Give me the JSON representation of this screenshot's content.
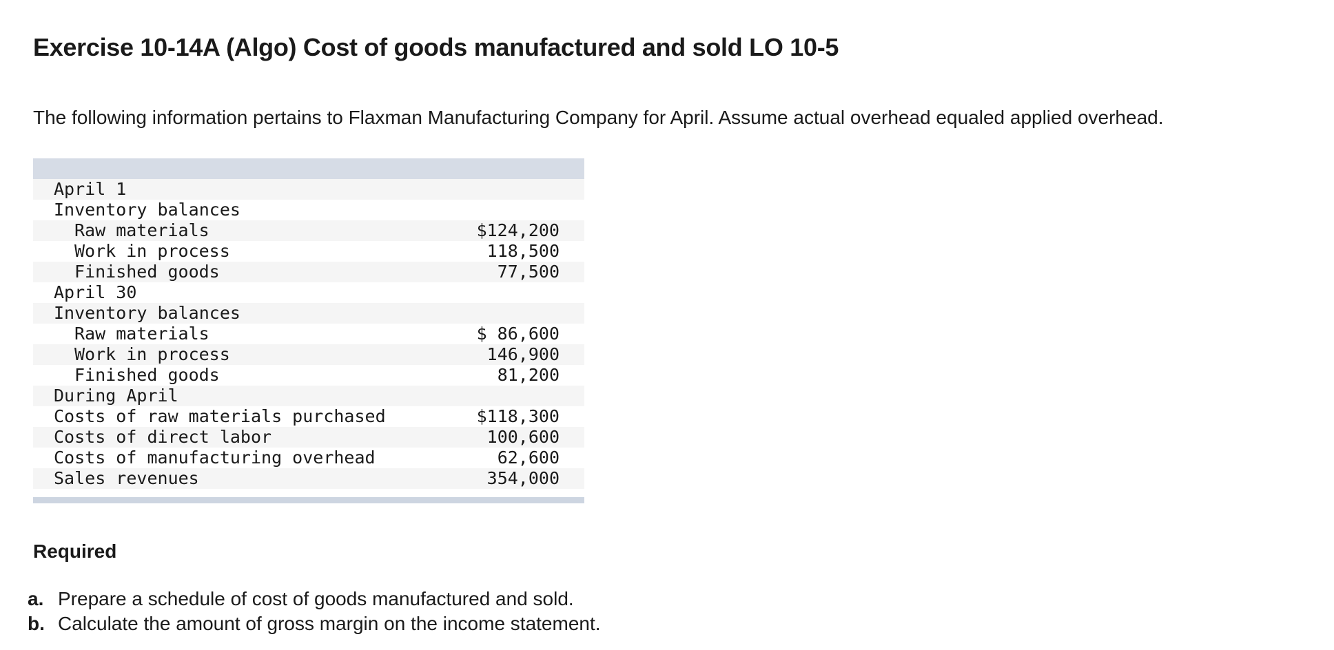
{
  "title": "Exercise 10-14A (Algo) Cost of goods manufactured and sold LO 10-5",
  "intro": "The following information pertains to Flaxman Manufacturing Company for April. Assume actual overhead equaled applied overhead.",
  "table": {
    "rows": [
      {
        "label": "April 1",
        "value": "",
        "indent": false
      },
      {
        "label": "Inventory balances",
        "value": "",
        "indent": false
      },
      {
        "label": "Raw materials",
        "value": "$124,200",
        "indent": true
      },
      {
        "label": "Work in process",
        "value": "118,500",
        "indent": true
      },
      {
        "label": "Finished goods",
        "value": "77,500",
        "indent": true
      },
      {
        "label": "April 30",
        "value": "",
        "indent": false
      },
      {
        "label": "Inventory balances",
        "value": "",
        "indent": false
      },
      {
        "label": "Raw materials",
        "value": "$ 86,600",
        "indent": true
      },
      {
        "label": "Work in process",
        "value": "146,900",
        "indent": true
      },
      {
        "label": "Finished goods",
        "value": "81,200",
        "indent": true
      },
      {
        "label": "During April",
        "value": "",
        "indent": false
      },
      {
        "label": "Costs of raw materials purchased",
        "value": "$118,300",
        "indent": false
      },
      {
        "label": "Costs of direct labor",
        "value": "100,600",
        "indent": false
      },
      {
        "label": "Costs of manufacturing overhead",
        "value": "62,600",
        "indent": false
      },
      {
        "label": "Sales revenues",
        "value": "354,000",
        "indent": false
      }
    ]
  },
  "required": {
    "heading": "Required",
    "items": [
      {
        "mark": "a.",
        "text": "Prepare a schedule of cost of goods manufactured and sold."
      },
      {
        "mark": "b.",
        "text": "Calculate the amount of gross margin on the income statement."
      }
    ]
  }
}
